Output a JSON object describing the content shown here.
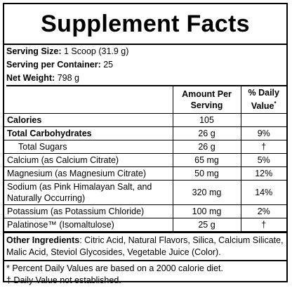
{
  "title": "Supplement Facts",
  "serving": {
    "size_label": "Serving Size:",
    "size_value": "1 Scoop (31.9 g)",
    "container_label": "Serving per Container:",
    "container_value": "25",
    "weight_label": "Net Weight:",
    "weight_value": "798 g"
  },
  "table": {
    "header": {
      "amount": "Amount Per Serving",
      "dv": "% Daily Value",
      "dv_mark": "*"
    },
    "rows": [
      {
        "name": "Calories",
        "amount": "105",
        "dv": ""
      },
      {
        "name": "Total Carbohydrates",
        "amount": "26 g",
        "dv": "9%"
      },
      {
        "name": "Total Sugars",
        "amount": "26 g",
        "dv": "†"
      },
      {
        "name": "Calcium (as Calcium Citrate)",
        "amount": "65 mg",
        "dv": "5%"
      },
      {
        "name": "Magnesium (as Magnesium Citrate)",
        "amount": "50 mg",
        "dv": "12%"
      },
      {
        "name": "Sodium (as Pink Himalayan Salt, and Naturally Occurring)",
        "amount": "320 mg",
        "dv": "14%"
      },
      {
        "name": "Potassium (as Potassium Chloride)",
        "amount": "100 mg",
        "dv": "2%"
      },
      {
        "name": "Palatinose™ (Isomaltulose)",
        "amount": "25 g",
        "dv": "†"
      }
    ]
  },
  "ingredients": {
    "label": "Other Ingredients",
    "text": ": Citric Acid, Natural Flavors, Silica, Calcium Silicate, Malic Acid, Steviol Glycosides, Vegetable Juice (Color)."
  },
  "notes": {
    "percent": "* Percent Daily Values are based on a 2000 calorie diet.",
    "dagger": "† Daily Value not established."
  }
}
